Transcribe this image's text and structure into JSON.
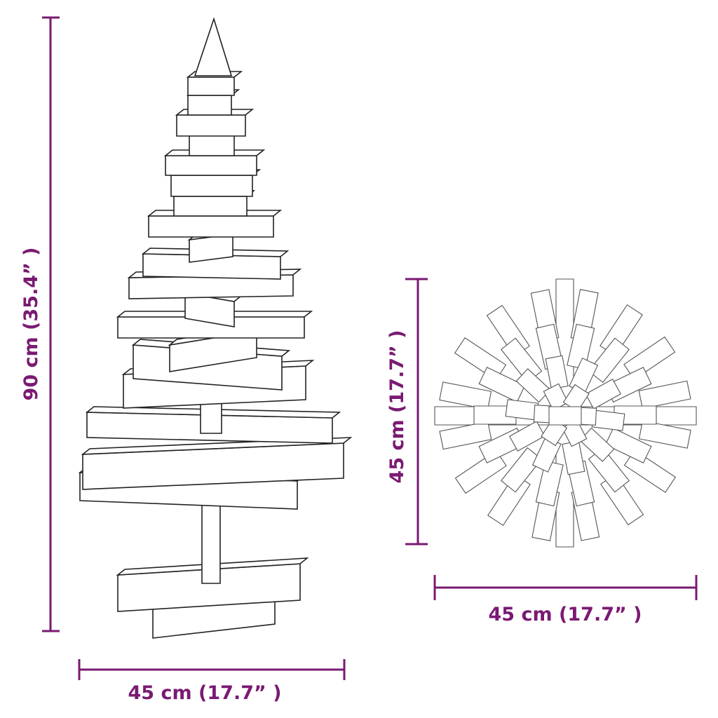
{
  "colors": {
    "dimension": "#7a1a72",
    "outline": "#222222"
  },
  "dimensions": {
    "tree_height": "90 cm (35.4” )",
    "tree_width": "45 cm (17.7” )",
    "top_view_height": "45 cm (17.7” )",
    "top_view_width": "45 cm (17.7” )"
  }
}
